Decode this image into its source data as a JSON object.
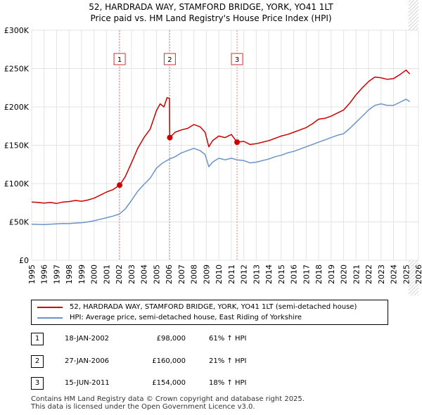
{
  "title": {
    "line1": "52, HARDRADA WAY, STAMFORD BRIDGE, YORK, YO41 1LT",
    "line2": "Price paid vs. HM Land Registry's House Price Index (HPI)"
  },
  "chart_data": {
    "type": "line",
    "ylim": [
      0,
      300000
    ],
    "xlim": [
      1995,
      2026
    ],
    "y_ticks": [
      {
        "value": 0,
        "label": "£0"
      },
      {
        "value": 50000,
        "label": "£50K"
      },
      {
        "value": 100000,
        "label": "£100K"
      },
      {
        "value": 150000,
        "label": "£150K"
      },
      {
        "value": 200000,
        "label": "£200K"
      },
      {
        "value": 250000,
        "label": "£250K"
      },
      {
        "value": 300000,
        "label": "£300K"
      }
    ],
    "x_ticks": [
      "1995",
      "1996",
      "1997",
      "1998",
      "1999",
      "2000",
      "2001",
      "2002",
      "2003",
      "2004",
      "2005",
      "2006",
      "2007",
      "2008",
      "2009",
      "2010",
      "2011",
      "2012",
      "2013",
      "2014",
      "2015",
      "2016",
      "2017",
      "2018",
      "2019",
      "2020",
      "2021",
      "2022",
      "2023",
      "2024",
      "2025",
      "2026"
    ],
    "grid": true,
    "series": [
      {
        "name": "52, HARDRADA WAY, STAMFORD BRIDGE, YORK, YO41 1LT (semi-detached house)",
        "color": "#cc0000",
        "points": [
          [
            1995.0,
            76000
          ],
          [
            1995.5,
            75500
          ],
          [
            1996.0,
            74500
          ],
          [
            1996.5,
            75500
          ],
          [
            1997.0,
            74000
          ],
          [
            1997.5,
            76000
          ],
          [
            1998.0,
            76500
          ],
          [
            1998.5,
            78000
          ],
          [
            1999.0,
            77000
          ],
          [
            1999.5,
            78500
          ],
          [
            2000.0,
            81000
          ],
          [
            2000.5,
            85000
          ],
          [
            2001.0,
            89000
          ],
          [
            2001.5,
            92000
          ],
          [
            2002.05,
            98000
          ],
          [
            2002.5,
            109000
          ],
          [
            2003.0,
            127000
          ],
          [
            2003.5,
            146000
          ],
          [
            2004.0,
            160000
          ],
          [
            2004.5,
            171000
          ],
          [
            2005.0,
            195000
          ],
          [
            2005.3,
            204000
          ],
          [
            2005.6,
            200000
          ],
          [
            2005.85,
            212000
          ],
          [
            2006.05,
            211000
          ],
          [
            2006.07,
            160000
          ],
          [
            2006.5,
            167000
          ],
          [
            2007.0,
            170000
          ],
          [
            2007.5,
            172000
          ],
          [
            2008.0,
            177000
          ],
          [
            2008.5,
            174000
          ],
          [
            2008.9,
            167000
          ],
          [
            2009.2,
            148000
          ],
          [
            2009.5,
            156000
          ],
          [
            2010.0,
            162000
          ],
          [
            2010.5,
            160000
          ],
          [
            2011.0,
            164000
          ],
          [
            2011.46,
            154000
          ],
          [
            2012.0,
            155000
          ],
          [
            2012.5,
            151000
          ],
          [
            2013.0,
            152000
          ],
          [
            2013.5,
            154000
          ],
          [
            2014.0,
            156000
          ],
          [
            2014.5,
            159000
          ],
          [
            2015.0,
            162000
          ],
          [
            2015.5,
            164000
          ],
          [
            2016.0,
            167000
          ],
          [
            2016.5,
            170000
          ],
          [
            2017.0,
            173000
          ],
          [
            2017.5,
            178000
          ],
          [
            2018.0,
            184000
          ],
          [
            2018.5,
            185000
          ],
          [
            2019.0,
            188000
          ],
          [
            2019.5,
            192000
          ],
          [
            2020.0,
            196000
          ],
          [
            2020.5,
            205000
          ],
          [
            2021.0,
            216000
          ],
          [
            2021.5,
            225000
          ],
          [
            2022.0,
            233000
          ],
          [
            2022.5,
            239000
          ],
          [
            2023.0,
            238000
          ],
          [
            2023.5,
            236000
          ],
          [
            2024.0,
            237000
          ],
          [
            2024.5,
            242000
          ],
          [
            2025.0,
            248000
          ],
          [
            2025.3,
            243000
          ]
        ]
      },
      {
        "name": "HPI: Average price, semi-detached house, East Riding of Yorkshire",
        "color": "#6a93c8",
        "points": [
          [
            1995.0,
            47000
          ],
          [
            1995.5,
            46800
          ],
          [
            1996.0,
            46500
          ],
          [
            1996.5,
            47000
          ],
          [
            1997.0,
            47500
          ],
          [
            1997.5,
            48000
          ],
          [
            1998.0,
            47800
          ],
          [
            1998.5,
            48500
          ],
          [
            1999.0,
            49000
          ],
          [
            1999.5,
            50000
          ],
          [
            2000.0,
            51500
          ],
          [
            2000.5,
            53500
          ],
          [
            2001.0,
            55500
          ],
          [
            2001.5,
            57500
          ],
          [
            2002.05,
            60500
          ],
          [
            2002.5,
            67000
          ],
          [
            2003.0,
            78000
          ],
          [
            2003.5,
            90000
          ],
          [
            2004.0,
            99000
          ],
          [
            2004.5,
            107000
          ],
          [
            2005.0,
            120000
          ],
          [
            2005.5,
            127000
          ],
          [
            2006.05,
            132000
          ],
          [
            2006.5,
            135000
          ],
          [
            2007.0,
            140000
          ],
          [
            2007.5,
            143000
          ],
          [
            2008.0,
            146000
          ],
          [
            2008.5,
            143000
          ],
          [
            2008.9,
            138000
          ],
          [
            2009.2,
            122000
          ],
          [
            2009.5,
            128000
          ],
          [
            2010.0,
            133000
          ],
          [
            2010.5,
            131000
          ],
          [
            2011.0,
            133000
          ],
          [
            2011.46,
            131000
          ],
          [
            2012.0,
            130000
          ],
          [
            2012.5,
            127000
          ],
          [
            2013.0,
            128000
          ],
          [
            2013.5,
            130000
          ],
          [
            2014.0,
            132000
          ],
          [
            2014.5,
            135000
          ],
          [
            2015.0,
            137000
          ],
          [
            2015.5,
            140000
          ],
          [
            2016.0,
            142000
          ],
          [
            2016.5,
            145000
          ],
          [
            2017.0,
            148000
          ],
          [
            2017.5,
            151000
          ],
          [
            2018.0,
            154000
          ],
          [
            2018.5,
            157000
          ],
          [
            2019.0,
            160000
          ],
          [
            2019.5,
            163000
          ],
          [
            2020.0,
            165000
          ],
          [
            2020.5,
            172000
          ],
          [
            2021.0,
            180000
          ],
          [
            2021.5,
            188000
          ],
          [
            2022.0,
            196000
          ],
          [
            2022.5,
            202000
          ],
          [
            2023.0,
            204000
          ],
          [
            2023.5,
            202000
          ],
          [
            2024.0,
            202000
          ],
          [
            2024.5,
            206000
          ],
          [
            2025.0,
            210000
          ],
          [
            2025.3,
            207000
          ]
        ]
      }
    ],
    "sales": [
      {
        "marker": "1",
        "x": 2002.05,
        "price": 98000
      },
      {
        "marker": "2",
        "x": 2006.07,
        "price": 160000
      },
      {
        "marker": "3",
        "x": 2011.46,
        "price": 154000
      }
    ],
    "forecast_start": 2025.2
  },
  "legend": {
    "red_label": "52, HARDRADA WAY, STAMFORD BRIDGE, YORK, YO41 1LT (semi-detached house)",
    "blue_label": "HPI: Average price, semi-detached house, East Riding of Yorkshire",
    "red_color": "#cc0000",
    "blue_color": "#6a93c8"
  },
  "sales_table": [
    {
      "num": "1",
      "date": "18-JAN-2002",
      "price": "£98,000",
      "hpi": "61% ↑ HPI"
    },
    {
      "num": "2",
      "date": "27-JAN-2006",
      "price": "£160,000",
      "hpi": "21% ↑ HPI"
    },
    {
      "num": "3",
      "date": "15-JUN-2011",
      "price": "£154,000",
      "hpi": "18% ↑ HPI"
    }
  ],
  "footer": {
    "line1": "Contains HM Land Registry data © Crown copyright and database right 2025.",
    "line2": "This data is licensed under the Open Government Licence v3.0."
  }
}
